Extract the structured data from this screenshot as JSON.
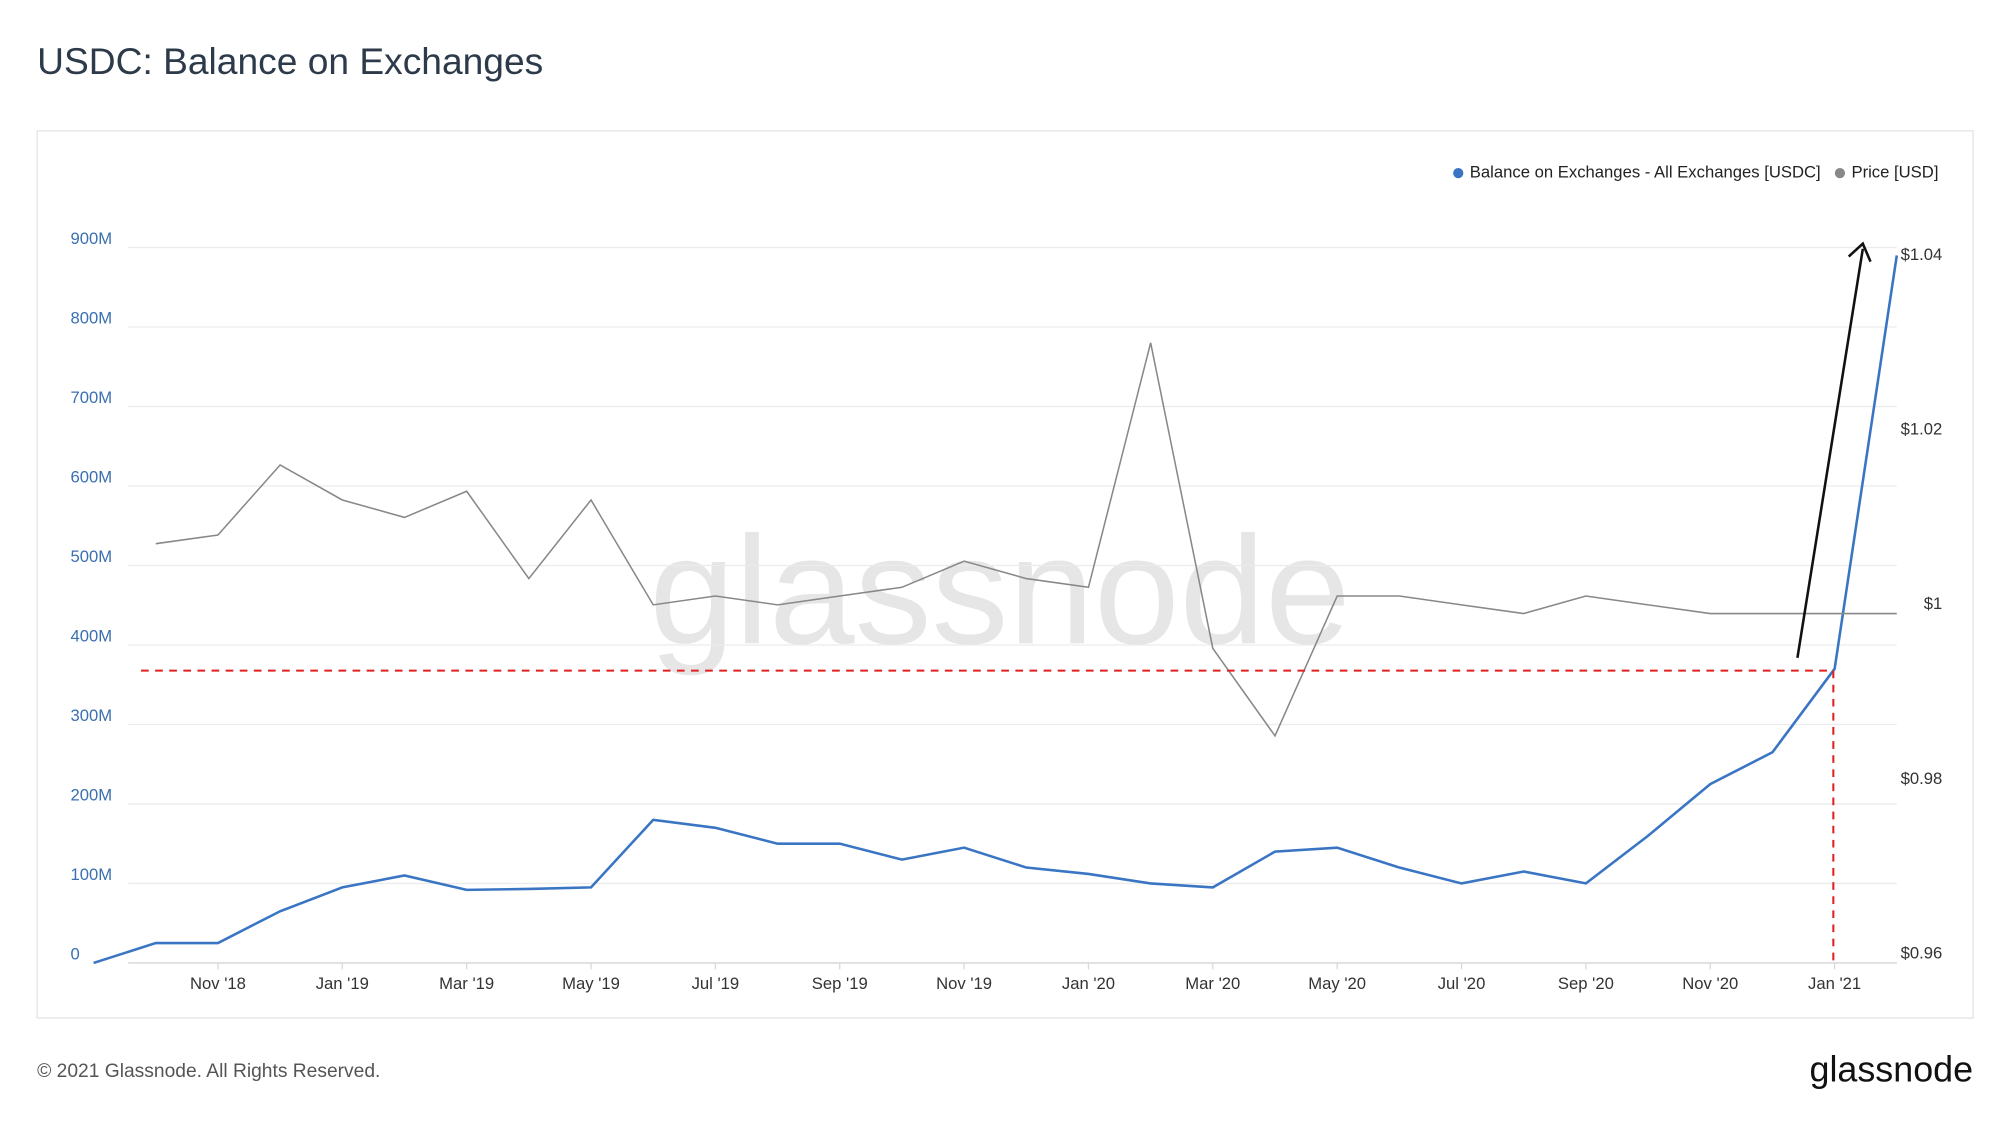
{
  "chart_data": {
    "type": "line",
    "title": "USDC: Balance on Exchanges",
    "watermark": "glassnode",
    "footer": "© 2021 Glassnode. All Rights Reserved.",
    "logo": "glassnode",
    "x": [
      "2018-09",
      "2018-10",
      "2018-11",
      "2018-12",
      "2019-01",
      "2019-02",
      "2019-03",
      "2019-04",
      "2019-05",
      "2019-06",
      "2019-07",
      "2019-08",
      "2019-09",
      "2019-10",
      "2019-11",
      "2019-12",
      "2020-01",
      "2020-02",
      "2020-03",
      "2020-04",
      "2020-05",
      "2020-06",
      "2020-07",
      "2020-08",
      "2020-09",
      "2020-10",
      "2020-11",
      "2020-12",
      "2021-01",
      "2021-02"
    ],
    "xlim": [
      "2018-09",
      "2021-02"
    ],
    "xticks": [
      {
        "value": "2018-11",
        "label": "Nov '18"
      },
      {
        "value": "2019-01",
        "label": "Jan '19"
      },
      {
        "value": "2019-03",
        "label": "Mar '19"
      },
      {
        "value": "2019-05",
        "label": "May '19"
      },
      {
        "value": "2019-07",
        "label": "Jul '19"
      },
      {
        "value": "2019-09",
        "label": "Sep '19"
      },
      {
        "value": "2019-11",
        "label": "Nov '19"
      },
      {
        "value": "2020-01",
        "label": "Jan '20"
      },
      {
        "value": "2020-03",
        "label": "Mar '20"
      },
      {
        "value": "2020-05",
        "label": "May '20"
      },
      {
        "value": "2020-07",
        "label": "Jul '20"
      },
      {
        "value": "2020-09",
        "label": "Sep '20"
      },
      {
        "value": "2020-11",
        "label": "Nov '20"
      },
      {
        "value": "2021-01",
        "label": "Jan '21"
      }
    ],
    "ylim": [
      0,
      1000000000
    ],
    "yticks": [
      0,
      {
        "value": 100000000,
        "label": "100M"
      },
      {
        "value": 200000000,
        "label": "200M"
      },
      {
        "value": 300000000,
        "label": "300M"
      },
      {
        "value": 400000000,
        "label": "400M"
      },
      {
        "value": 500000000,
        "label": "500M"
      },
      {
        "value": 600000000,
        "label": "600M"
      },
      {
        "value": 700000000,
        "label": "700M"
      },
      {
        "value": 800000000,
        "label": "800M"
      },
      {
        "value": 900000000,
        "label": "900M"
      }
    ],
    "y2lim": [
      0.959,
      1.05
    ],
    "y2ticks": [
      {
        "value": 0.96,
        "label": "$0.96"
      },
      {
        "value": 0.98,
        "label": "$0.98"
      },
      {
        "value": 1,
        "label": "$1"
      },
      {
        "value": 1.02,
        "label": "$1.02"
      },
      {
        "value": 1.04,
        "label": "$1.04"
      }
    ],
    "grid": true,
    "legend": "top-right",
    "series": [
      {
        "name": "Balance on Exchanges - All Exchanges [USDC]",
        "color": "#3a75c4",
        "values": [
          0,
          25000000,
          25000000,
          65000000,
          95000000,
          110000000,
          92000000,
          93000000,
          95000000,
          180000000,
          170000000,
          150000000,
          150000000,
          130000000,
          145000000,
          120000000,
          112000000,
          100000000,
          95000000,
          140000000,
          145000000,
          120000000,
          100000000,
          115000000,
          100000000,
          160000000,
          225000000,
          265000000,
          370000000,
          890000000
        ]
      },
      {
        "name": "Price [USD]",
        "color": "#888888",
        "axis": "y2",
        "values": [
          null,
          1.007,
          1.008,
          1.016,
          1.012,
          1.01,
          1.013,
          1.003,
          1.012,
          1.0,
          1.001,
          1.0,
          1.001,
          1.002,
          1.005,
          1.003,
          1.002,
          1.03,
          0.995,
          0.985,
          1.001,
          1.001,
          1.0,
          0.999,
          1.001,
          1.0,
          0.999,
          0.999,
          0.999,
          0.999
        ]
      }
    ]
  }
}
